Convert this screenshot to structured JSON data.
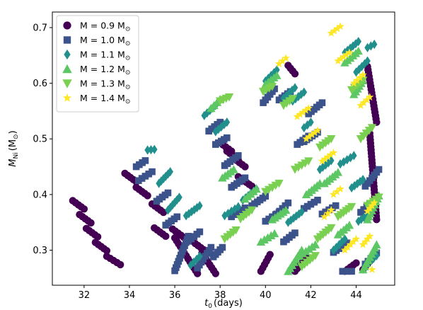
{
  "chart_data": {
    "type": "scatter",
    "xlabel": "t",
    "xlabel_sub": "0",
    "xlabel_unit": "(days)",
    "ylabel": "M",
    "ylabel_sub": "Ni",
    "ylabel_unit": "(M",
    "ylabel_unit_close": ")",
    "solar_symbol": "⊙",
    "xlim": [
      30.6,
      45.7
    ],
    "ylim": [
      0.237,
      0.728
    ],
    "x_ticks": [
      32,
      34,
      36,
      38,
      40,
      42,
      44
    ],
    "x_tick_labels": [
      "32",
      "34",
      "36",
      "38",
      "40",
      "42",
      "44"
    ],
    "y_ticks": [
      0.3,
      0.4,
      0.5,
      0.6,
      0.7
    ],
    "y_tick_labels": [
      "0.3",
      "0.4",
      "0.5",
      "0.6",
      "0.7"
    ],
    "legend_position": "top-left",
    "grid": false,
    "series": [
      {
        "label_prefix": "M = 0.9 M",
        "color": "#440154",
        "marker": "circle",
        "runs": [
          [
            31.5,
            0.389,
            32.0,
            0.374
          ],
          [
            31.8,
            0.364,
            32.3,
            0.349
          ],
          [
            32.1,
            0.339,
            32.6,
            0.324
          ],
          [
            32.5,
            0.314,
            33.0,
            0.299
          ],
          [
            33.0,
            0.289,
            33.6,
            0.274
          ],
          [
            33.8,
            0.438,
            34.3,
            0.423
          ],
          [
            34.3,
            0.413,
            34.8,
            0.398
          ],
          [
            35.0,
            0.383,
            35.5,
            0.368
          ],
          [
            35.1,
            0.34,
            35.6,
            0.325
          ],
          [
            35.9,
            0.338,
            36.4,
            0.323
          ],
          [
            36.0,
            0.322,
            37.0,
            0.258
          ],
          [
            36.9,
            0.312,
            37.4,
            0.297
          ],
          [
            37.2,
            0.295,
            37.8,
            0.258
          ],
          [
            38.0,
            0.493,
            38.5,
            0.478
          ],
          [
            38.3,
            0.478,
            38.8,
            0.462
          ],
          [
            38.6,
            0.465,
            39.1,
            0.45
          ],
          [
            38.8,
            0.432,
            39.4,
            0.415
          ],
          [
            39.8,
            0.262,
            40.2,
            0.292
          ],
          [
            41.0,
            0.632,
            41.3,
            0.617
          ],
          [
            41.3,
            0.262,
            41.8,
            0.287
          ],
          [
            43.5,
            0.262,
            44.0,
            0.277
          ],
          [
            44.3,
            0.265,
            44.6,
            0.28
          ],
          [
            44.5,
            0.63,
            44.9,
            0.53
          ],
          [
            44.6,
            0.51,
            44.9,
            0.355
          ]
        ]
      },
      {
        "label_prefix": "M = 1.0 M",
        "color": "#3b528b",
        "marker": "square",
        "runs": [
          [
            34.3,
            0.45,
            34.7,
            0.461
          ],
          [
            34.4,
            0.425,
            35.0,
            0.441
          ],
          [
            35.2,
            0.388,
            35.7,
            0.403
          ],
          [
            35.6,
            0.345,
            36.1,
            0.36
          ],
          [
            36.0,
            0.263,
            36.6,
            0.325
          ],
          [
            36.6,
            0.316,
            37.1,
            0.333
          ],
          [
            37.0,
            0.268,
            37.6,
            0.305
          ],
          [
            37.7,
            0.288,
            38.1,
            0.305
          ],
          [
            37.5,
            0.514,
            38.0,
            0.53
          ],
          [
            37.8,
            0.49,
            38.3,
            0.502
          ],
          [
            38.2,
            0.452,
            38.8,
            0.47
          ],
          [
            38.5,
            0.413,
            39.1,
            0.43
          ],
          [
            38.5,
            0.36,
            39.1,
            0.376
          ],
          [
            39.4,
            0.38,
            40.0,
            0.397
          ],
          [
            40.0,
            0.352,
            40.6,
            0.368
          ],
          [
            39.9,
            0.565,
            40.4,
            0.59
          ],
          [
            40.5,
            0.365,
            41.0,
            0.385
          ],
          [
            40.8,
            0.315,
            41.3,
            0.331
          ],
          [
            40.6,
            0.57,
            41.1,
            0.585
          ],
          [
            41.4,
            0.49,
            41.9,
            0.505
          ],
          [
            41.7,
            0.495,
            42.3,
            0.512
          ],
          [
            41.9,
            0.545,
            42.5,
            0.565
          ],
          [
            41.7,
            0.375,
            42.3,
            0.39
          ],
          [
            42.5,
            0.365,
            43.1,
            0.38
          ],
          [
            43.0,
            0.296,
            43.6,
            0.313
          ],
          [
            43.4,
            0.262,
            43.8,
            0.262
          ],
          [
            44.4,
            0.415,
            45.0,
            0.445
          ],
          [
            44.2,
            0.368,
            44.6,
            0.383
          ],
          [
            44.4,
            0.275,
            44.9,
            0.295
          ]
        ]
      },
      {
        "label_prefix": "M = 1.1 M",
        "color": "#21908d",
        "marker": "diamond",
        "runs": [
          [
            34.8,
            0.48,
            35.1,
            0.481
          ],
          [
            35.3,
            0.42,
            35.8,
            0.441
          ],
          [
            35.7,
            0.372,
            36.2,
            0.395
          ],
          [
            36.5,
            0.362,
            37.1,
            0.38
          ],
          [
            36.7,
            0.273,
            37.1,
            0.289
          ],
          [
            37.3,
            0.542,
            37.8,
            0.56
          ],
          [
            37.8,
            0.513,
            38.3,
            0.53
          ],
          [
            38.2,
            0.362,
            38.8,
            0.378
          ],
          [
            39.0,
            0.39,
            39.6,
            0.41
          ],
          [
            40.0,
            0.604,
            40.5,
            0.624
          ],
          [
            40.8,
            0.573,
            41.3,
            0.592
          ],
          [
            41.0,
            0.35,
            41.6,
            0.369
          ],
          [
            41.2,
            0.568,
            41.7,
            0.584
          ],
          [
            41.7,
            0.52,
            42.0,
            0.53
          ],
          [
            42.4,
            0.445,
            42.9,
            0.461
          ],
          [
            43.3,
            0.455,
            43.9,
            0.47
          ],
          [
            43.5,
            0.655,
            44.1,
            0.675
          ],
          [
            44.0,
            0.62,
            44.5,
            0.64
          ],
          [
            44.5,
            0.664,
            44.8,
            0.67
          ],
          [
            43.8,
            0.412,
            44.3,
            0.427
          ],
          [
            43.0,
            0.3,
            43.5,
            0.32
          ],
          [
            44.1,
            0.352,
            44.6,
            0.366
          ],
          [
            44.4,
            0.272,
            44.9,
            0.29
          ]
        ]
      },
      {
        "label_prefix": "M = 1.2 M",
        "color": "#5dc863",
        "marker": "triangle-up",
        "runs": [
          [
            37.6,
            0.555,
            38.0,
            0.571
          ],
          [
            38.1,
            0.43,
            38.6,
            0.445
          ],
          [
            39.1,
            0.392,
            39.6,
            0.41
          ],
          [
            40.0,
            0.598,
            40.5,
            0.614
          ],
          [
            39.8,
            0.315,
            40.4,
            0.33
          ],
          [
            40.3,
            0.355,
            40.9,
            0.372
          ],
          [
            41.0,
            0.262,
            41.6,
            0.3
          ],
          [
            41.8,
            0.4,
            42.4,
            0.42
          ],
          [
            41.5,
            0.29,
            42.2,
            0.31
          ],
          [
            42.6,
            0.42,
            43.2,
            0.44
          ],
          [
            43.2,
            0.328,
            43.7,
            0.345
          ],
          [
            43.5,
            0.637,
            44.1,
            0.658
          ],
          [
            43.9,
            0.58,
            44.3,
            0.605
          ],
          [
            44.3,
            0.265,
            44.9,
            0.31
          ],
          [
            44.5,
            0.355,
            45.0,
            0.398
          ]
        ]
      },
      {
        "label_prefix": "M = 1.3 M",
        "color": "#7ad151",
        "marker": "triangle-down",
        "runs": [
          [
            38.0,
            0.568,
            38.4,
            0.575
          ],
          [
            38.2,
            0.32,
            38.7,
            0.336
          ],
          [
            38.9,
            0.356,
            39.4,
            0.372
          ],
          [
            39.9,
            0.585,
            40.3,
            0.594
          ],
          [
            40.0,
            0.405,
            40.6,
            0.42
          ],
          [
            40.8,
            0.56,
            41.2,
            0.572
          ],
          [
            41.3,
            0.445,
            41.9,
            0.46
          ],
          [
            41.6,
            0.27,
            42.2,
            0.29
          ],
          [
            42.3,
            0.32,
            42.9,
            0.34
          ],
          [
            42.4,
            0.485,
            42.9,
            0.5
          ],
          [
            43.2,
            0.36,
            43.8,
            0.378
          ],
          [
            43.8,
            0.588,
            44.3,
            0.605
          ],
          [
            44.2,
            0.5,
            44.7,
            0.52
          ],
          [
            44.5,
            0.38,
            45.0,
            0.395
          ]
        ]
      },
      {
        "label_prefix": "M = 1.4 M",
        "color": "#fde725",
        "marker": "star",
        "runs": [
          [
            40.6,
            0.635,
            40.9,
            0.645
          ],
          [
            41.4,
            0.54,
            41.9,
            0.555
          ],
          [
            41.8,
            0.5,
            42.3,
            0.515
          ],
          [
            42.5,
            0.46,
            43.0,
            0.475
          ],
          [
            42.9,
            0.69,
            43.3,
            0.702
          ],
          [
            43.2,
            0.64,
            43.7,
            0.655
          ],
          [
            43.5,
            0.3,
            44.0,
            0.32
          ],
          [
            43.9,
            0.6,
            44.3,
            0.615
          ],
          [
            44.2,
            0.56,
            44.6,
            0.575
          ],
          [
            44.5,
            0.37,
            44.8,
            0.385
          ],
          [
            44.7,
            0.265,
            44.7,
            0.265
          ],
          [
            44.3,
            0.31,
            44.6,
            0.325
          ],
          [
            42.6,
            0.36,
            42.9,
            0.372
          ],
          [
            43.0,
            0.4,
            43.3,
            0.41
          ]
        ]
      }
    ]
  }
}
